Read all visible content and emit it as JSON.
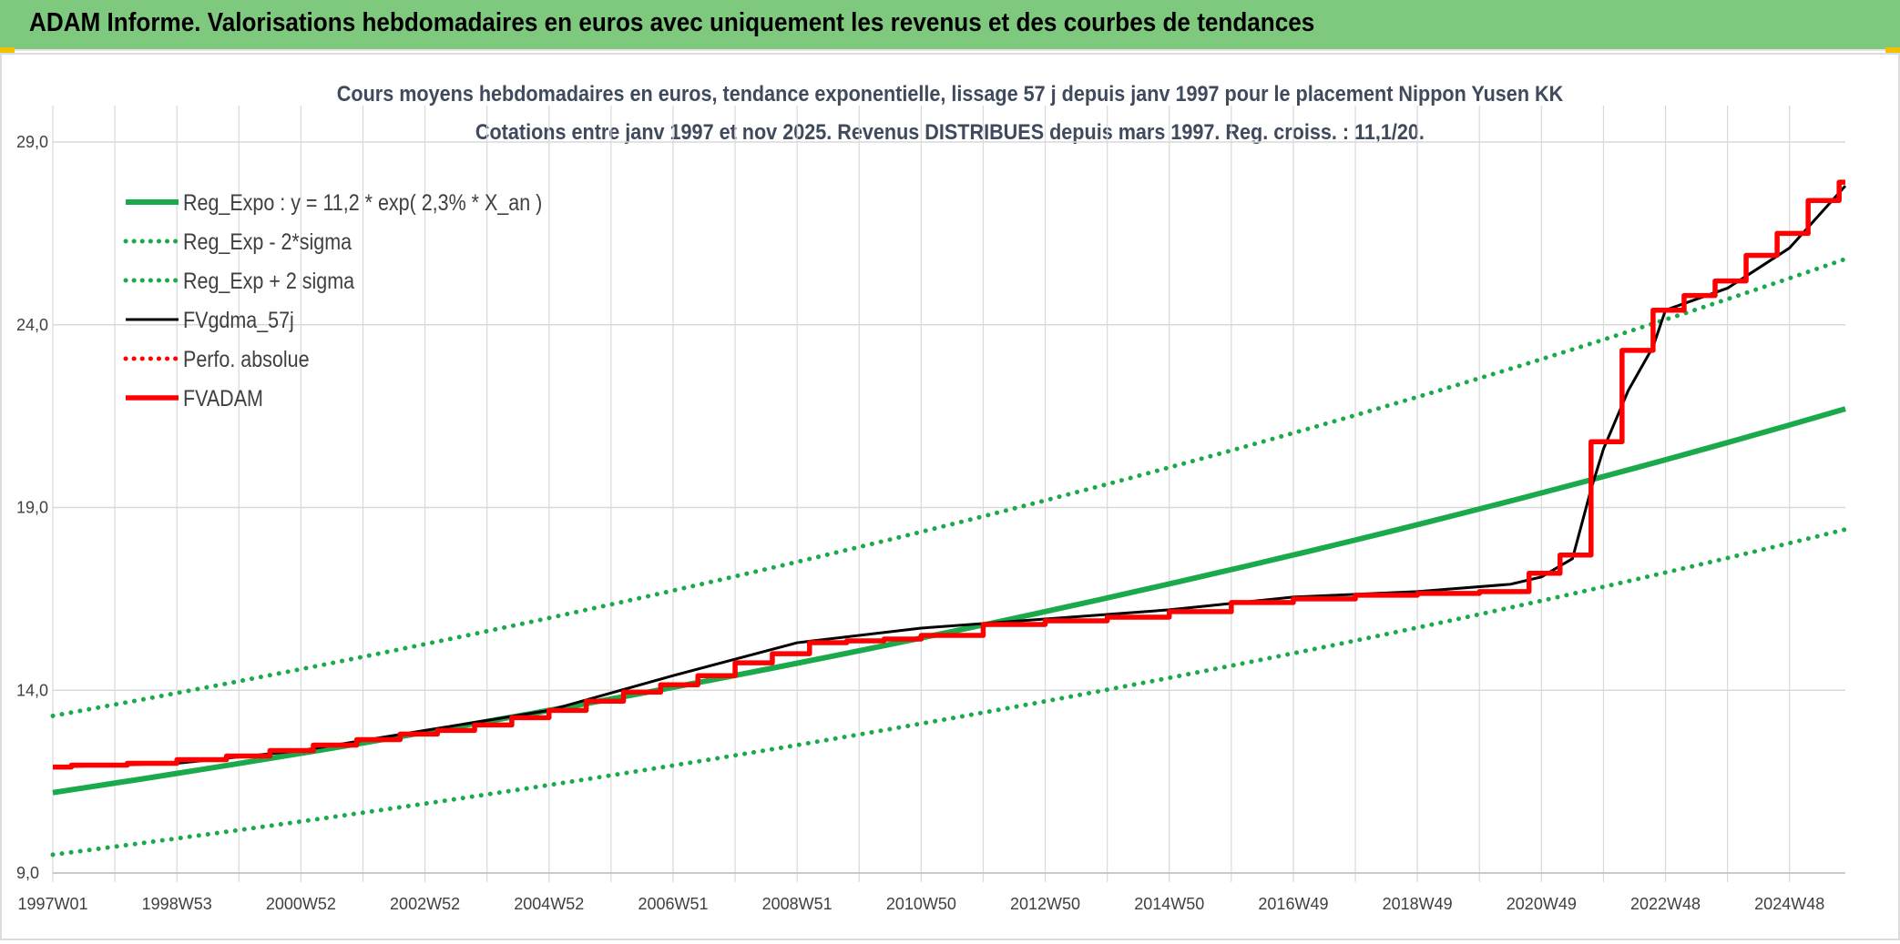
{
  "header": {
    "title": "ADAM Informe. Valorisations hebdomadaires en euros avec uniquement les revenus et des courbes de tendances"
  },
  "colors": {
    "header_bg": "#7ec97e",
    "corner": "#f2c200",
    "reg_expo": "#1aaa4b",
    "fvgdma": "#000000",
    "fvadam": "#ff0000",
    "grid": "#d9d9d9"
  },
  "chart_data": {
    "type": "line",
    "title_line1": "Cours moyens hebdomadaires en euros, tendance exponentielle, lissage 57 j depuis janv 1997 pour le placement Nippon Yusen KK",
    "title_line2": "Cotations entre janv 1997 et nov 2025. Revenus DISTRIBUES depuis mars 1997. Reg. croiss. : 11,1/20.",
    "xlabel": "",
    "ylabel": "",
    "ylim": [
      9,
      29
    ],
    "xlim": [
      1997.0,
      2025.9
    ],
    "grid": true,
    "legend_position": "top-left",
    "y_ticks": [
      "9,0",
      "14,0",
      "19,0",
      "24,0",
      "29,0"
    ],
    "y_tick_values": [
      9,
      14,
      19,
      24,
      29
    ],
    "x_ticks": [
      "1997W01",
      "1998W53",
      "2000W52",
      "2002W52",
      "2004W52",
      "2006W51",
      "2008W51",
      "2010W50",
      "2012W50",
      "2014W50",
      "2016W49",
      "2018W49",
      "2020W49",
      "2022W48",
      "2024W48"
    ],
    "x_tick_values": [
      1997,
      1999,
      2001,
      2003,
      2005,
      2007,
      2009,
      2011,
      2013,
      2015,
      2017,
      2019,
      2021,
      2023,
      2025
    ],
    "series": [
      {
        "name": "Reg_Expo : y = 11,2 * exp( 2,3% *  X_an )",
        "style": "solid-thick",
        "color": "#1aaa4b",
        "x": [
          1997.0,
          2000.0,
          2003.0,
          2006.0,
          2009.0,
          2012.0,
          2015.0,
          2018.0,
          2021.0,
          2024.0,
          2025.9
        ],
        "y": [
          11.2,
          11.99,
          12.84,
          13.76,
          14.73,
          15.78,
          16.9,
          18.1,
          19.39,
          20.77,
          21.7
        ]
      },
      {
        "name": "Reg_Exp - 2*sigma",
        "style": "dotted",
        "color": "#1aaa4b",
        "x": [
          1997.0,
          2000.0,
          2003.0,
          2006.0,
          2009.0,
          2012.0,
          2015.0,
          2018.0,
          2021.0,
          2024.0,
          2025.9
        ],
        "y": [
          9.5,
          10.17,
          10.89,
          11.67,
          12.5,
          13.39,
          14.34,
          15.36,
          16.45,
          17.62,
          18.4
        ]
      },
      {
        "name": "Reg_Exp + 2 sigma",
        "style": "dotted",
        "color": "#1aaa4b",
        "x": [
          1997.0,
          2000.0,
          2003.0,
          2006.0,
          2009.0,
          2012.0,
          2015.0,
          2018.0,
          2021.0,
          2024.0,
          2025.9
        ],
        "y": [
          13.3,
          14.25,
          15.26,
          16.34,
          17.5,
          18.74,
          20.07,
          21.5,
          23.03,
          24.66,
          25.8
        ]
      },
      {
        "name": "FVgdma_57j",
        "style": "solid",
        "color": "#000000",
        "x": [
          1997.0,
          1999.0,
          2001.0,
          2003.0,
          2005.0,
          2007.0,
          2009.0,
          2011.0,
          2013.0,
          2015.0,
          2017.0,
          2019.0,
          2020.5,
          2021.0,
          2021.5,
          2021.8,
          2022.0,
          2022.4,
          2022.8,
          2023.0,
          2024.0,
          2025.0,
          2025.9
        ],
        "y": [
          11.9,
          12.0,
          12.35,
          12.9,
          13.45,
          14.4,
          15.3,
          15.7,
          15.95,
          16.2,
          16.55,
          16.7,
          16.9,
          17.1,
          17.6,
          19.5,
          20.6,
          22.2,
          23.4,
          24.4,
          25.0,
          26.1,
          27.8
        ]
      },
      {
        "name": "Perfo. absolue",
        "style": "dotted",
        "color": "#ff0000",
        "x": [],
        "y": []
      },
      {
        "name": "FVADAM",
        "style": "steps-thick",
        "color": "#ff0000",
        "x": [
          1997.0,
          1997.3,
          1998.2,
          1999.0,
          1999.8,
          2000.5,
          2001.2,
          2001.9,
          2002.6,
          2003.2,
          2003.8,
          2004.4,
          2005.0,
          2005.6,
          2006.2,
          2006.8,
          2007.4,
          2008.0,
          2008.6,
          2009.2,
          2009.8,
          2010.4,
          2011.0,
          2012.0,
          2013.0,
          2014.0,
          2015.0,
          2016.0,
          2017.0,
          2018.0,
          2019.0,
          2020.0,
          2020.8,
          2021.3,
          2021.8,
          2022.3,
          2022.8,
          2023.3,
          2023.8,
          2024.3,
          2024.8,
          2025.3,
          2025.8,
          2025.9
        ],
        "y": [
          11.9,
          11.95,
          12.0,
          12.1,
          12.2,
          12.35,
          12.5,
          12.65,
          12.8,
          12.9,
          13.05,
          13.25,
          13.45,
          13.7,
          13.95,
          14.15,
          14.4,
          14.75,
          15.0,
          15.3,
          15.35,
          15.4,
          15.5,
          15.8,
          15.9,
          16.0,
          16.15,
          16.4,
          16.5,
          16.6,
          16.65,
          16.7,
          17.2,
          17.7,
          20.8,
          23.3,
          24.4,
          24.8,
          25.2,
          25.9,
          26.5,
          27.4,
          27.9,
          27.9
        ]
      }
    ]
  }
}
